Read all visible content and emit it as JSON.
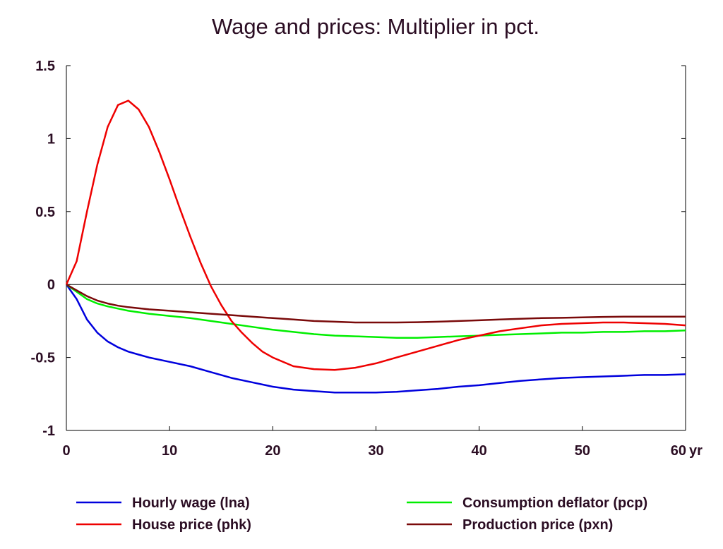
{
  "chart_data": {
    "type": "line",
    "title": "Wage and prices: Multiplier in pct.",
    "xlabel": "",
    "ylabel": "",
    "x_unit_label": "yr",
    "xlim": [
      0,
      60
    ],
    "ylim": [
      -1,
      1.5
    ],
    "x_ticks": [
      0,
      10,
      20,
      30,
      40,
      50,
      60
    ],
    "x_tick_labels": [
      "0",
      "10",
      "20",
      "30",
      "40",
      "50",
      "60"
    ],
    "y_ticks": [
      1.5,
      1,
      0.5,
      0,
      -0.5,
      -1
    ],
    "y_tick_labels": [
      "1.5",
      "1",
      "0.5",
      "0",
      "-0.5",
      "-1"
    ],
    "zero_line": true,
    "grid": false,
    "legend_position": "bottom",
    "series": [
      {
        "name": "Hourly wage (lna)",
        "color": "#0000dd",
        "x": [
          0,
          1,
          2,
          3,
          4,
          5,
          6,
          7,
          8,
          10,
          12,
          14,
          16,
          18,
          20,
          22,
          24,
          26,
          28,
          30,
          32,
          34,
          36,
          38,
          40,
          42,
          44,
          46,
          48,
          50,
          52,
          54,
          56,
          58,
          60
        ],
        "values": [
          0,
          -0.1,
          -0.24,
          -0.33,
          -0.39,
          -0.43,
          -0.46,
          -0.48,
          -0.5,
          -0.53,
          -0.56,
          -0.6,
          -0.64,
          -0.67,
          -0.7,
          -0.72,
          -0.73,
          -0.74,
          -0.74,
          -0.74,
          -0.735,
          -0.725,
          -0.715,
          -0.7,
          -0.69,
          -0.675,
          -0.66,
          -0.65,
          -0.64,
          -0.635,
          -0.63,
          -0.625,
          -0.62,
          -0.62,
          -0.615
        ]
      },
      {
        "name": "Consumption deflator (pcp)",
        "color": "#00ee00",
        "x": [
          0,
          1,
          2,
          3,
          4,
          5,
          6,
          8,
          10,
          12,
          14,
          16,
          18,
          20,
          22,
          24,
          26,
          28,
          30,
          32,
          34,
          36,
          38,
          40,
          42,
          44,
          46,
          48,
          50,
          52,
          54,
          56,
          58,
          60
        ],
        "values": [
          0,
          -0.05,
          -0.1,
          -0.13,
          -0.15,
          -0.165,
          -0.18,
          -0.2,
          -0.215,
          -0.23,
          -0.25,
          -0.27,
          -0.29,
          -0.31,
          -0.325,
          -0.34,
          -0.35,
          -0.355,
          -0.36,
          -0.365,
          -0.365,
          -0.36,
          -0.355,
          -0.35,
          -0.345,
          -0.34,
          -0.335,
          -0.33,
          -0.33,
          -0.325,
          -0.325,
          -0.32,
          -0.32,
          -0.315
        ]
      },
      {
        "name": "House price (phk)",
        "color": "#ee0000",
        "x": [
          0,
          1,
          2,
          3,
          4,
          5,
          6,
          7,
          8,
          9,
          10,
          11,
          12,
          13,
          14,
          15,
          16,
          17,
          18,
          19,
          20,
          22,
          24,
          26,
          28,
          30,
          32,
          34,
          36,
          38,
          40,
          42,
          44,
          46,
          48,
          50,
          52,
          54,
          56,
          58,
          60
        ],
        "values": [
          0,
          0.16,
          0.5,
          0.82,
          1.08,
          1.23,
          1.26,
          1.2,
          1.08,
          0.91,
          0.72,
          0.52,
          0.33,
          0.15,
          -0.01,
          -0.14,
          -0.25,
          -0.33,
          -0.4,
          -0.46,
          -0.5,
          -0.56,
          -0.58,
          -0.585,
          -0.57,
          -0.54,
          -0.5,
          -0.46,
          -0.42,
          -0.38,
          -0.35,
          -0.32,
          -0.3,
          -0.28,
          -0.27,
          -0.265,
          -0.26,
          -0.26,
          -0.265,
          -0.27,
          -0.28
        ]
      },
      {
        "name": "Production price (pxn)",
        "color": "#7a0a0a",
        "x": [
          0,
          1,
          2,
          3,
          4,
          5,
          6,
          8,
          10,
          12,
          14,
          16,
          18,
          20,
          22,
          24,
          26,
          28,
          30,
          32,
          34,
          36,
          38,
          40,
          42,
          44,
          46,
          48,
          50,
          52,
          54,
          56,
          58,
          60
        ],
        "values": [
          0,
          -0.04,
          -0.08,
          -0.11,
          -0.13,
          -0.145,
          -0.155,
          -0.17,
          -0.18,
          -0.19,
          -0.2,
          -0.21,
          -0.22,
          -0.23,
          -0.24,
          -0.25,
          -0.255,
          -0.26,
          -0.26,
          -0.26,
          -0.258,
          -0.255,
          -0.25,
          -0.245,
          -0.24,
          -0.235,
          -0.23,
          -0.228,
          -0.225,
          -0.222,
          -0.22,
          -0.22,
          -0.22,
          -0.22
        ]
      }
    ]
  }
}
